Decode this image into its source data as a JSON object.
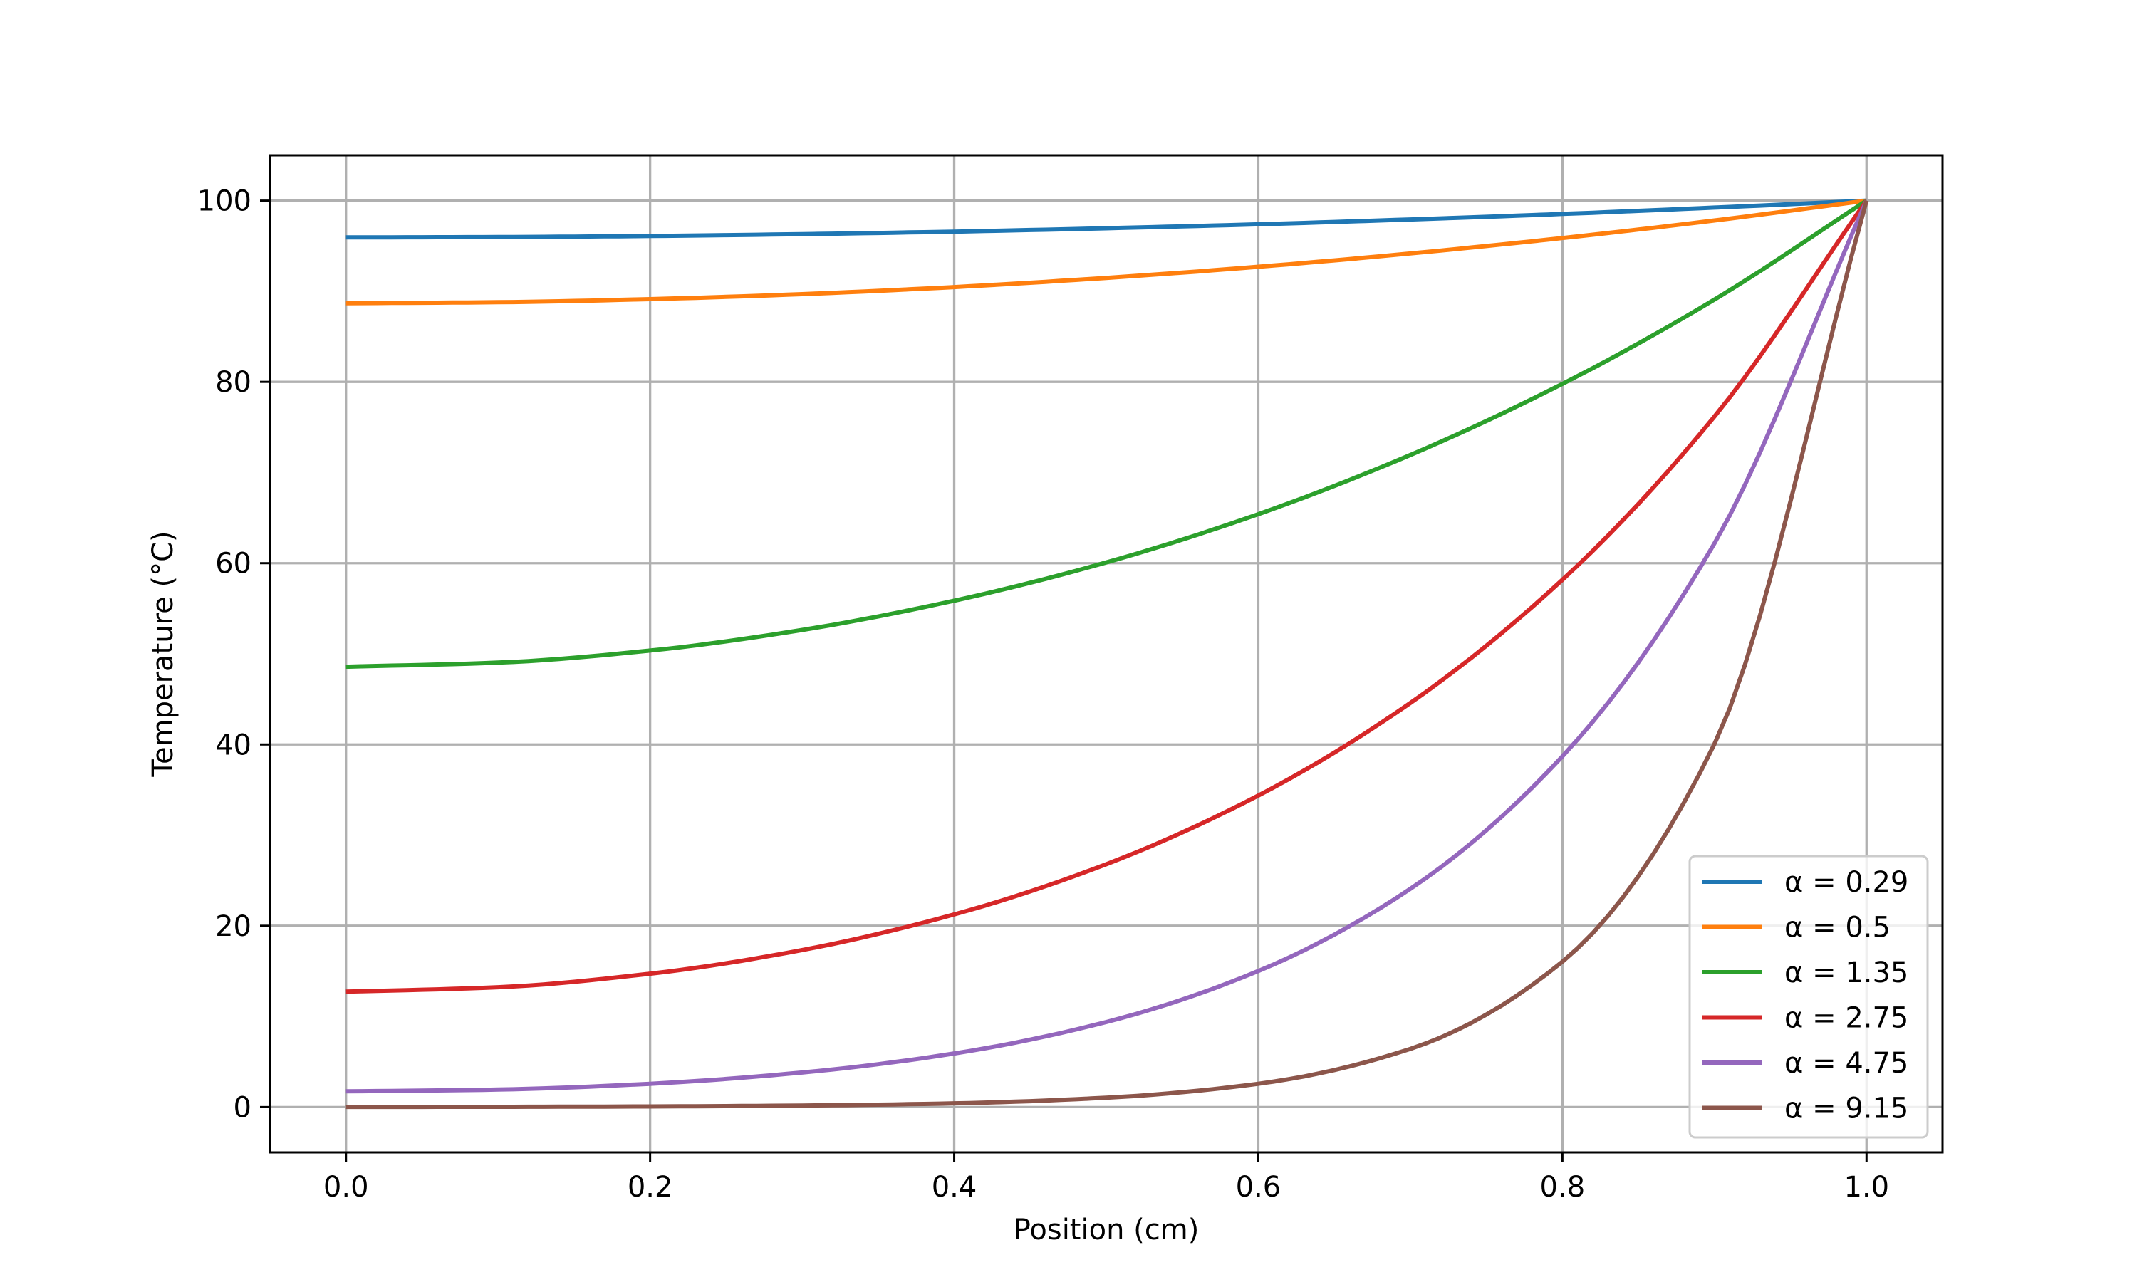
{
  "chart_data": {
    "type": "line",
    "title": "",
    "xlabel": "Position (cm)",
    "ylabel": "Temperature (°C)",
    "xlim": [
      -0.05,
      1.05
    ],
    "ylim": [
      -5,
      105
    ],
    "xticks": [
      "0.0",
      "0.2",
      "0.4",
      "0.6",
      "0.8",
      "1.0"
    ],
    "yticks": [
      "0",
      "20",
      "40",
      "60",
      "80",
      "100"
    ],
    "grid": true,
    "legend_position": "lower-right",
    "x": [
      0,
      0.1,
      0.2,
      0.3,
      0.4,
      0.5,
      0.6,
      0.7,
      0.8,
      0.9,
      1.0
    ],
    "series": [
      {
        "name": "α = 0.29",
        "color": "#1f77b4",
        "values": [
          95.94,
          95.98,
          96.1,
          96.3,
          96.58,
          96.95,
          97.39,
          97.92,
          98.53,
          99.23,
          100
        ]
      },
      {
        "name": "α = 0.5",
        "color": "#ff7f0e",
        "values": [
          88.68,
          88.79,
          89.13,
          89.68,
          90.46,
          91.47,
          92.7,
          94.17,
          95.87,
          97.81,
          100
        ]
      },
      {
        "name": "α = 1.35",
        "color": "#2ca02c",
        "values": [
          48.58,
          49.03,
          50.36,
          52.63,
          55.86,
          60.08,
          65.41,
          71.94,
          79.78,
          89.08,
          100
        ]
      },
      {
        "name": "α = 2.75",
        "color": "#d62728",
        "values": [
          12.73,
          13.22,
          14.71,
          17.32,
          21.25,
          26.79,
          34.37,
          44.58,
          58.17,
          76.18,
          100
        ]
      },
      {
        "name": "α = 4.75",
        "color": "#9467bd",
        "values": [
          1.73,
          1.93,
          2.57,
          3.81,
          5.91,
          9.38,
          15.01,
          24.08,
          38.69,
          62.19,
          100
        ]
      },
      {
        "name": "α = 9.15",
        "color": "#8c564b",
        "values": [
          0.02,
          0.03,
          0.07,
          0.17,
          0.41,
          1.03,
          2.57,
          6.42,
          16.04,
          40.05,
          100
        ]
      }
    ]
  }
}
